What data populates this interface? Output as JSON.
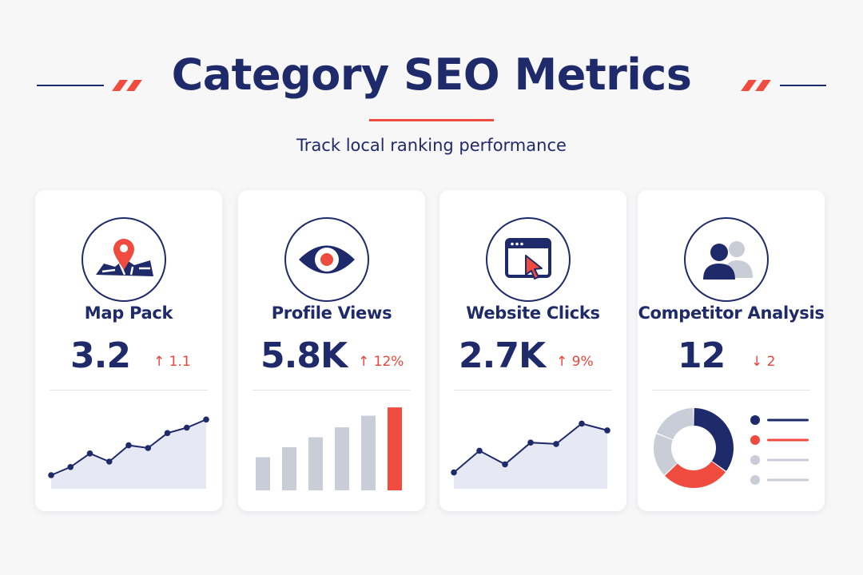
{
  "header": {
    "title": "Category SEO Metrics",
    "subtitle": "Track local ranking performance"
  },
  "colors": {
    "navy": "#1f2a6b",
    "accent_red": "#ef4b3f",
    "gray_bar": "#c9cdd8",
    "area_fill": "#e6e8f4",
    "background": "#f7f7f8"
  },
  "cards": [
    {
      "title": "Map Pack",
      "value": "3.2",
      "delta": "1.1",
      "trend": "up",
      "icon": "map-pin-icon"
    },
    {
      "title": "Profile Views",
      "value": "5.8K",
      "delta": "12%",
      "trend": "up",
      "icon": "eye-icon"
    },
    {
      "title": "Website Clicks",
      "value": "2.7K",
      "delta": "9%",
      "trend": "up",
      "icon": "browser-cursor-icon"
    },
    {
      "title": "Competitor Analysis",
      "value": "12",
      "delta": "2",
      "trend": "down",
      "icon": "users-icon"
    }
  ],
  "chart_data": [
    {
      "type": "area",
      "card": "Map Pack",
      "x": [
        1,
        2,
        3,
        4,
        5,
        6,
        7,
        8,
        9
      ],
      "values": [
        1.0,
        1.6,
        2.6,
        2.0,
        3.2,
        3.0,
        4.1,
        4.5,
        5.1
      ],
      "ylim": [
        0,
        6
      ]
    },
    {
      "type": "bar",
      "card": "Profile Views",
      "categories": [
        "1",
        "2",
        "3",
        "4",
        "5",
        "6"
      ],
      "values": [
        2.0,
        2.6,
        3.2,
        3.8,
        4.5,
        5.0
      ],
      "highlight_index": 5,
      "ylim": [
        0,
        5.2
      ]
    },
    {
      "type": "area",
      "card": "Website Clicks",
      "x": [
        1,
        2,
        3,
        4,
        5,
        6,
        7
      ],
      "values": [
        1.2,
        2.8,
        1.8,
        3.4,
        3.3,
        4.8,
        4.3
      ],
      "ylim": [
        0,
        6
      ]
    },
    {
      "type": "pie",
      "card": "Competitor Analysis",
      "values": [
        35,
        28,
        18,
        19
      ],
      "colors": [
        "#1f2a6b",
        "#ef4b3f",
        "#c9cdd8",
        "#c9cdd8"
      ],
      "legend_colors": [
        "#1f2a6b",
        "#ef4b3f",
        "#c9cdd8",
        "#c9cdd8"
      ],
      "legend_placement": "right"
    }
  ]
}
